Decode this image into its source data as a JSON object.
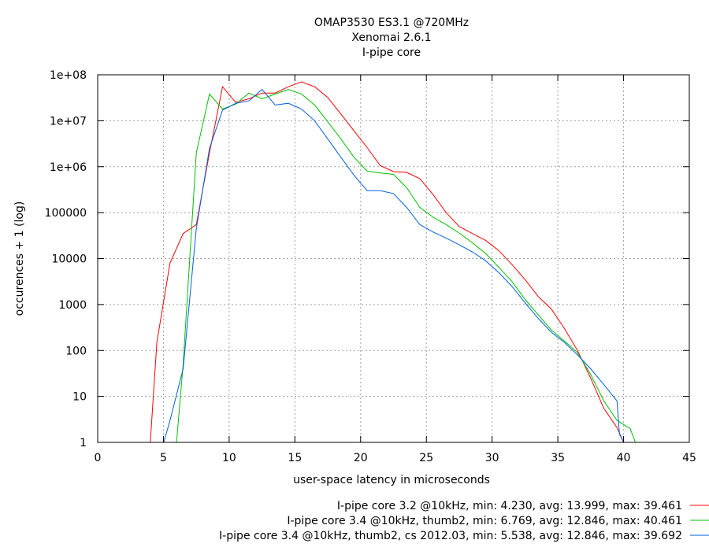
{
  "chart_data": {
    "type": "line",
    "title": [
      "OMAP3530 ES3.1 @720MHz",
      "Xenomai 2.6.1",
      "I-pipe core"
    ],
    "xlabel": "user-space latency in microseconds",
    "ylabel": "occurences + 1 (log)",
    "xlim": [
      0,
      45
    ],
    "ylim": [
      1,
      100000000
    ],
    "yscale": "log",
    "grid": true,
    "legend_position": "bottom-right",
    "x_ticks": [
      {
        "value": 0,
        "label": "0"
      },
      {
        "value": 5,
        "label": "5"
      },
      {
        "value": 10,
        "label": "10"
      },
      {
        "value": 15,
        "label": "15"
      },
      {
        "value": 20,
        "label": "20"
      },
      {
        "value": 25,
        "label": "25"
      },
      {
        "value": 30,
        "label": "30"
      },
      {
        "value": 35,
        "label": "35"
      },
      {
        "value": 40,
        "label": "40"
      },
      {
        "value": 45,
        "label": "45"
      }
    ],
    "y_ticks": [
      {
        "value": 1,
        "label": "1"
      },
      {
        "value": 10,
        "label": "10"
      },
      {
        "value": 100,
        "label": "100"
      },
      {
        "value": 1000,
        "label": "1000"
      },
      {
        "value": 10000,
        "label": "10000"
      },
      {
        "value": 100000,
        "label": "100000"
      },
      {
        "value": 1000000,
        "label": "1e+06"
      },
      {
        "value": 10000000,
        "label": "1e+07"
      },
      {
        "value": 100000000,
        "label": "1e+08"
      }
    ],
    "series": [
      {
        "name": "I-pipe core 3.2 @10kHz, min: 4.230, avg: 13.999, max: 39.461",
        "color": "#ff0000",
        "points": [
          [
            3.96,
            0.85
          ],
          [
            4.0,
            1
          ],
          [
            4.5,
            150
          ],
          [
            5.5,
            8000
          ],
          [
            6.5,
            35000
          ],
          [
            7.5,
            55000
          ],
          [
            8.5,
            2000000
          ],
          [
            9.5,
            55000000
          ],
          [
            10.5,
            25000000
          ],
          [
            11.5,
            30000000
          ],
          [
            12.5,
            40000000
          ],
          [
            13.5,
            40000000
          ],
          [
            14.5,
            55000000
          ],
          [
            15.5,
            70000000
          ],
          [
            16.5,
            55000000
          ],
          [
            17.5,
            32000000
          ],
          [
            18.5,
            14000000
          ],
          [
            19.5,
            6000000
          ],
          [
            20.5,
            2600000
          ],
          [
            21.5,
            1050000
          ],
          [
            22.5,
            780000
          ],
          [
            23.5,
            750000
          ],
          [
            24.5,
            550000
          ],
          [
            25.5,
            250000
          ],
          [
            26.5,
            100000
          ],
          [
            27.5,
            50000
          ],
          [
            28.5,
            35000
          ],
          [
            29.5,
            25000
          ],
          [
            30.5,
            15000
          ],
          [
            31.5,
            7500
          ],
          [
            32.5,
            3500
          ],
          [
            33.5,
            1500
          ],
          [
            34.5,
            800
          ],
          [
            35.5,
            300
          ],
          [
            36.5,
            100
          ],
          [
            37.5,
            25
          ],
          [
            38.5,
            5.5
          ],
          [
            39.5,
            2.1
          ],
          [
            40.0,
            1
          ]
        ]
      },
      {
        "name": "I-pipe core 3.4 @10kHz, thumb2, min: 6.769, avg: 12.846, max: 40.461",
        "color": "#00c000",
        "points": [
          [
            5.98,
            0.85
          ],
          [
            6.0,
            1
          ],
          [
            6.5,
            50
          ],
          [
            7.5,
            2000000
          ],
          [
            8.5,
            38000000
          ],
          [
            9.5,
            18000000
          ],
          [
            10.5,
            23000000
          ],
          [
            11.5,
            40000000
          ],
          [
            12.5,
            30000000
          ],
          [
            13.5,
            38000000
          ],
          [
            14.5,
            48000000
          ],
          [
            15.5,
            38000000
          ],
          [
            16.5,
            22000000
          ],
          [
            17.5,
            9500000
          ],
          [
            18.5,
            4000000
          ],
          [
            19.5,
            1600000
          ],
          [
            20.5,
            800000
          ],
          [
            21.5,
            730000
          ],
          [
            22.5,
            680000
          ],
          [
            23.5,
            350000
          ],
          [
            24.5,
            130000
          ],
          [
            25.5,
            80000
          ],
          [
            26.5,
            55000
          ],
          [
            27.5,
            36000
          ],
          [
            28.5,
            22000
          ],
          [
            29.5,
            13000
          ],
          [
            30.5,
            6500
          ],
          [
            31.5,
            3200
          ],
          [
            32.5,
            1300
          ],
          [
            33.5,
            600
          ],
          [
            34.5,
            280
          ],
          [
            35.5,
            160
          ],
          [
            36.5,
            90
          ],
          [
            37.5,
            30
          ],
          [
            38.5,
            8
          ],
          [
            39.5,
            3
          ],
          [
            40.5,
            2
          ],
          [
            40.9,
            1
          ],
          [
            41.0,
            0.85
          ]
        ]
      },
      {
        "name": "I-pipe core 3.4 @10kHz, thumb2, cs 2012.03, min: 5.538, avg: 12.846, max: 39.692",
        "color": "#0060e0",
        "points": [
          [
            5.0,
            0.85
          ],
          [
            5.02,
            1
          ],
          [
            5.5,
            3
          ],
          [
            6.5,
            40
          ],
          [
            7.5,
            45000
          ],
          [
            8.5,
            2500000
          ],
          [
            9.5,
            17000000
          ],
          [
            10.5,
            24000000
          ],
          [
            11.5,
            27000000
          ],
          [
            12.5,
            48000000
          ],
          [
            13.5,
            22000000
          ],
          [
            14.5,
            24000000
          ],
          [
            15.5,
            18000000
          ],
          [
            16.5,
            10000000
          ],
          [
            17.5,
            4000000
          ],
          [
            18.5,
            1600000
          ],
          [
            19.5,
            650000
          ],
          [
            20.5,
            300000
          ],
          [
            21.5,
            300000
          ],
          [
            22.5,
            260000
          ],
          [
            23.5,
            130000
          ],
          [
            24.5,
            55000
          ],
          [
            25.5,
            38000
          ],
          [
            26.5,
            28000
          ],
          [
            27.5,
            20000
          ],
          [
            28.5,
            14000
          ],
          [
            29.5,
            9000
          ],
          [
            30.5,
            5000
          ],
          [
            31.5,
            2500
          ],
          [
            32.5,
            1100
          ],
          [
            33.5,
            500
          ],
          [
            34.5,
            250
          ],
          [
            35.5,
            150
          ],
          [
            36.5,
            80
          ],
          [
            37.5,
            40
          ],
          [
            38.5,
            18
          ],
          [
            39.5,
            8
          ],
          [
            39.69,
            1.5
          ],
          [
            40.0,
            1
          ],
          [
            40.05,
            0.85
          ]
        ]
      }
    ]
  }
}
